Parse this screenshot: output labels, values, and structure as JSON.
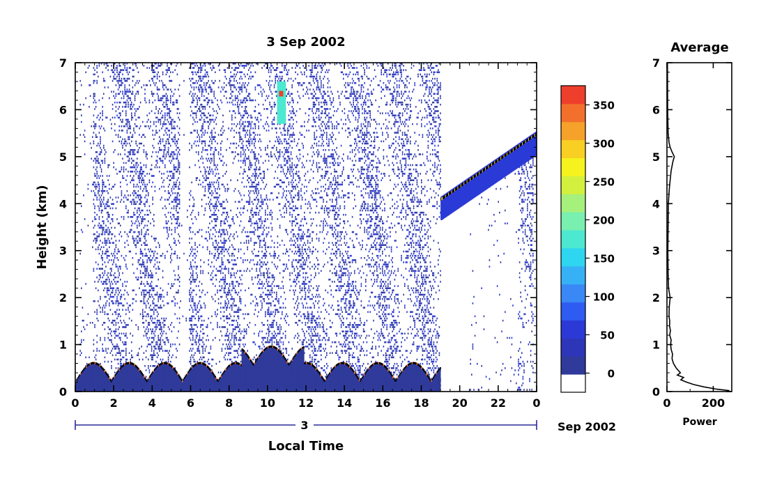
{
  "chart_data": [
    {
      "type": "heatmap",
      "title": "3 Sep 2002",
      "xlabel": "Local Time",
      "ylabel": "Height (km)",
      "xlim": [
        0,
        24
      ],
      "ylim": [
        0,
        7
      ],
      "x_ticks": [
        "0",
        "2",
        "4",
        "6",
        "8",
        "10",
        "12",
        "14",
        "16",
        "18",
        "20",
        "22",
        "0"
      ],
      "y_ticks": [
        "0",
        "1",
        "2",
        "3",
        "4",
        "5",
        "6",
        "7"
      ],
      "date_bar": {
        "day_label": "3",
        "date_label": "Sep 2002"
      },
      "colorbar": {
        "ticks": [
          "0",
          "50",
          "100",
          "150",
          "200",
          "250",
          "300",
          "350"
        ],
        "range": [
          -25,
          375
        ],
        "colors": [
          "#ffffff",
          "#2f3a9a",
          "#2d36b8",
          "#2b3ad6",
          "#2f5cf0",
          "#3a88f5",
          "#37b1f5",
          "#2ed6f0",
          "#4de8d0",
          "#79efb0",
          "#a6f07c",
          "#d4f03e",
          "#f5f21e",
          "#f8cf22",
          "#f5a12a",
          "#f2702c",
          "#ee3f2c"
        ]
      },
      "features": [
        {
          "name": "surface layer",
          "x": [
            0,
            19
          ],
          "height_km": [
            0,
            0.6
          ]
        },
        {
          "name": "upper layer",
          "x": [
            19,
            24
          ],
          "height_km": [
            4.0,
            5.4
          ]
        },
        {
          "name": "plume near 11h",
          "x": [
            10.5,
            10.9
          ],
          "height_km": [
            5.7,
            6.6
          ]
        }
      ]
    },
    {
      "type": "line",
      "title": "Average",
      "xlabel": "Power",
      "ylabel": "",
      "xlim": [
        0,
        280
      ],
      "ylim": [
        0,
        7
      ],
      "x_ticks": [
        "0",
        "200"
      ],
      "y_ticks": [
        "0",
        "1",
        "2",
        "3",
        "4",
        "5",
        "6",
        "7"
      ],
      "profile": {
        "height_km": [
          0.02,
          0.05,
          0.1,
          0.15,
          0.2,
          0.25,
          0.3,
          0.35,
          0.4,
          0.5,
          0.6,
          0.7,
          0.8,
          0.9,
          1.0,
          1.1,
          1.2,
          1.3,
          1.4,
          1.5,
          1.6,
          1.8,
          2.0,
          2.2,
          2.5,
          3.0,
          3.5,
          4.0,
          4.3,
          4.5,
          4.7,
          4.9,
          5.0,
          5.1,
          5.2,
          5.3,
          5.5,
          6.0,
          7.0
        ],
        "power": [
          270,
          215,
          160,
          115,
          85,
          60,
          72,
          45,
          58,
          40,
          28,
          22,
          24,
          18,
          16,
          18,
          12,
          15,
          11,
          12,
          9,
          10,
          14,
          7,
          5,
          4,
          5,
          6,
          10,
          14,
          18,
          26,
          32,
          22,
          14,
          9,
          5,
          3,
          2
        ]
      }
    }
  ]
}
